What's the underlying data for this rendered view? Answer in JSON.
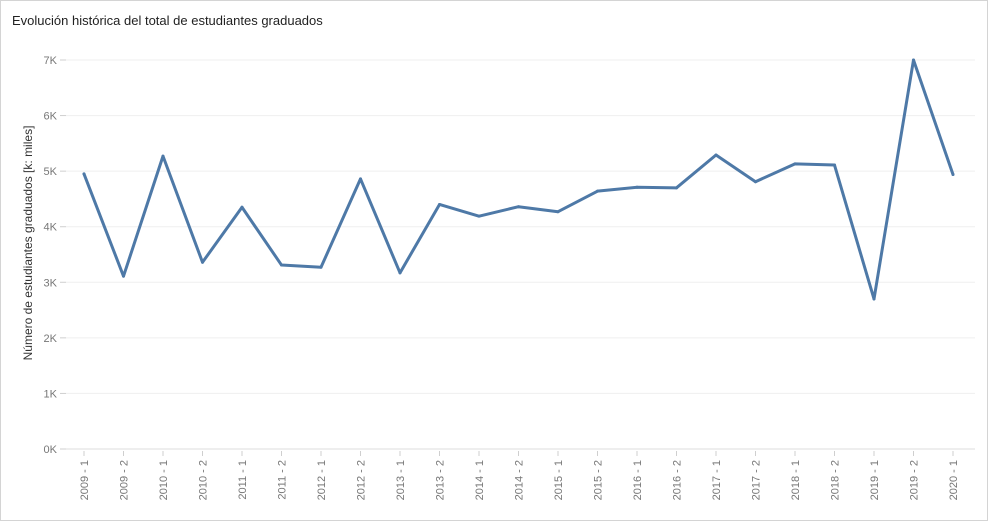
{
  "chart_data": {
    "type": "line",
    "title": "Evolución histórica del total de estudiantes graduados",
    "xlabel": "",
    "ylabel": "Número de estudiantes graduados [k: miles]",
    "categories": [
      "2009 - 1",
      "2009 - 2",
      "2010 - 1",
      "2010 - 2",
      "2011 - 1",
      "2011 - 2",
      "2012 - 1",
      "2012 - 2",
      "2013 - 1",
      "2013 - 2",
      "2014 - 1",
      "2014 - 2",
      "2015 - 1",
      "2015 - 2",
      "2016 - 1",
      "2016 - 2",
      "2017 - 1",
      "2017 - 2",
      "2018 - 1",
      "2018 - 2",
      "2019 - 1",
      "2019 - 2",
      "2020 - 1"
    ],
    "series": [
      {
        "values": [
          4950,
          3110,
          5270,
          3360,
          4350,
          3310,
          3270,
          4860,
          3170,
          4400,
          4190,
          4360,
          4270,
          4640,
          4710,
          4700,
          5290,
          4810,
          5130,
          5110,
          2700,
          7000,
          4940
        ]
      }
    ],
    "ylim": [
      0,
      7000
    ],
    "yticks": [
      {
        "value": 0,
        "label": "0K"
      },
      {
        "value": 1000,
        "label": "1K"
      },
      {
        "value": 2000,
        "label": "2K"
      },
      {
        "value": 3000,
        "label": "3K"
      },
      {
        "value": 4000,
        "label": "4K"
      },
      {
        "value": 5000,
        "label": "5K"
      },
      {
        "value": 6000,
        "label": "6K"
      },
      {
        "value": 7000,
        "label": "7K"
      }
    ],
    "grid": true,
    "line_color": "#4e79a7"
  }
}
